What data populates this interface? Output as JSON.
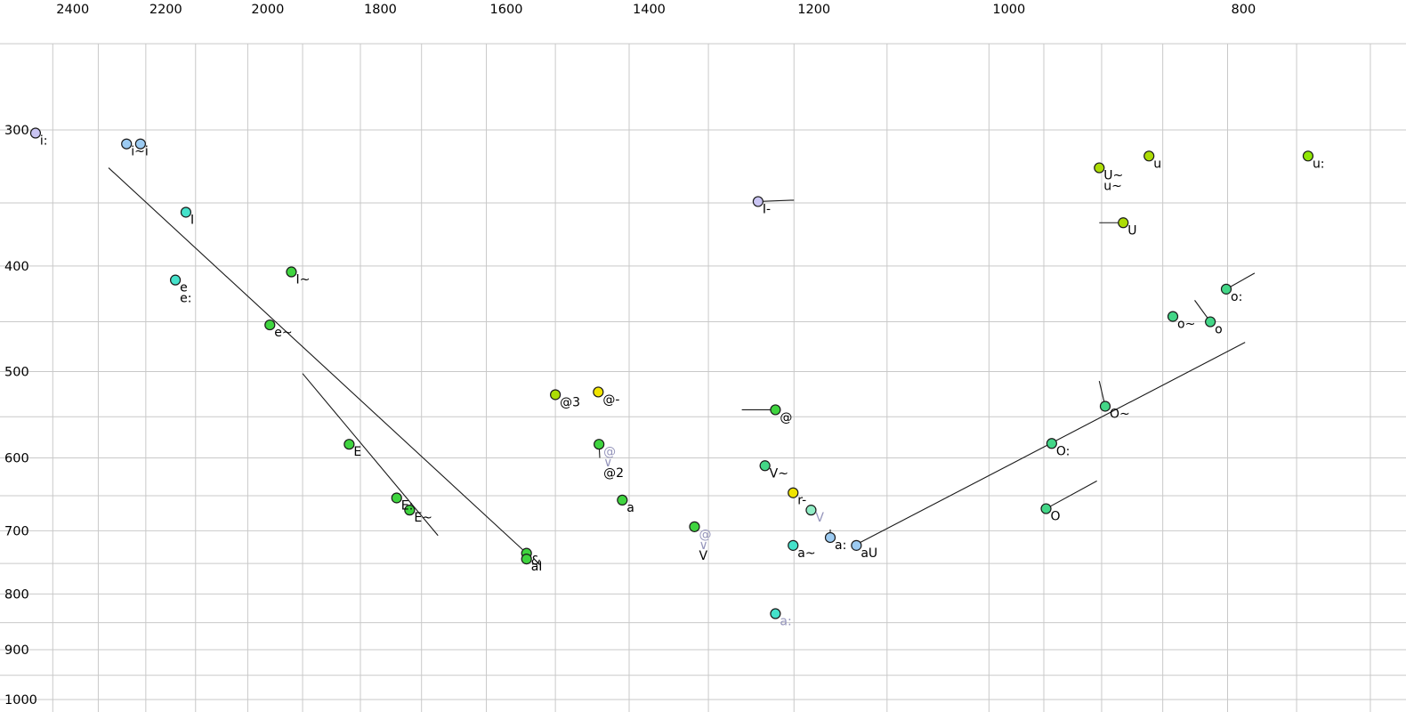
{
  "chart_data": {
    "type": "scatter",
    "title": "",
    "description_visible_text_only": true,
    "x_axis": {
      "unit": "Hz",
      "scale": "log",
      "reversed": true,
      "ticks": [
        2400,
        2200,
        2000,
        1800,
        1600,
        1400,
        1200,
        1000,
        800
      ],
      "gridlines": [
        2400,
        2300,
        2200,
        2100,
        2000,
        1900,
        1800,
        1700,
        1600,
        1500,
        1400,
        1300,
        1200,
        1100,
        1000,
        950,
        900,
        850,
        800,
        750,
        700
      ]
    },
    "y_axis": {
      "unit": "Hz",
      "scale": "log",
      "ticks": [
        300,
        400,
        500,
        600,
        700,
        800,
        900,
        1000
      ],
      "gridlines": [
        250,
        300,
        350,
        400,
        450,
        500,
        550,
        600,
        650,
        700,
        750,
        800,
        850,
        900,
        950,
        1000
      ]
    },
    "grid": true,
    "legend": null,
    "colors": {
      "lavender": "#C9C4F2",
      "lightblue": "#9CCBF2",
      "turquoise": "#45E2CB",
      "green": "#3FD43F",
      "springgreen": "#43D687",
      "aqua": "#90EDC5",
      "yellow": "#F0E400",
      "yellowgreen": "#ACDC05",
      "chartreuse": "#8FE605",
      "label_black": "#000000",
      "label_grey": "#9595BB",
      "dot_stroke": "#1a1a1a",
      "grid_line": "#C9C9C9",
      "segment": "#1a1a1a"
    },
    "points": [
      {
        "labels": [
          {
            "t": "i:"
          }
        ],
        "f2": 2439,
        "f1": 302,
        "color": "lavender"
      },
      {
        "labels": [
          {
            "t": "i~"
          }
        ],
        "f2": 2240,
        "f1": 309,
        "color": "lightblue"
      },
      {
        "labels": [
          {
            "t": "i"
          }
        ],
        "f2": 2211,
        "f1": 309,
        "color": "lightblue"
      },
      {
        "labels": [
          {
            "t": "I"
          }
        ],
        "f2": 2119,
        "f1": 357,
        "color": "turquoise"
      },
      {
        "labels": [
          {
            "t": "e"
          },
          {
            "t": "e:"
          }
        ],
        "f2": 2140,
        "f1": 412,
        "color": "turquoise"
      },
      {
        "labels": [
          {
            "t": "I~"
          }
        ],
        "f2": 1920,
        "f1": 405,
        "color": "green"
      },
      {
        "labels": [
          {
            "t": "e~"
          }
        ],
        "f2": 1959,
        "f1": 453,
        "color": "green"
      },
      {
        "labels": [
          {
            "t": "E"
          }
        ],
        "f2": 1819,
        "f1": 583,
        "color": "green"
      },
      {
        "labels": [
          {
            "t": "E:"
          }
        ],
        "f2": 1740,
        "f1": 653,
        "color": "green"
      },
      {
        "labels": [
          {
            "t": "E~"
          }
        ],
        "f2": 1719,
        "f1": 670,
        "color": "green"
      },
      {
        "labels": [
          {
            "t": "&"
          }
        ],
        "f2": 1541,
        "f1": 734,
        "color": "green"
      },
      {
        "labels": [
          {
            "t": "aI"
          }
        ],
        "f2": 1541,
        "f1": 743,
        "color": "green"
      },
      {
        "labels": [
          {
            "t": "@3"
          }
        ],
        "f2": 1500,
        "f1": 525,
        "color": "yellowgreen"
      },
      {
        "labels": [
          {
            "t": "@-"
          }
        ],
        "f2": 1441,
        "f1": 522,
        "color": "yellow"
      },
      {
        "labels": [
          {
            "t": "@",
            "grey": true
          },
          {
            "t": "∨",
            "grey": true
          },
          {
            "t": "@2"
          }
        ],
        "f2": 1440,
        "f1": 583,
        "color": "green",
        "tail": [
          1439,
          600
        ]
      },
      {
        "labels": [
          {
            "t": "a"
          }
        ],
        "f2": 1409,
        "f1": 656,
        "color": "green"
      },
      {
        "labels": [
          {
            "t": "@",
            "grey": true
          },
          {
            "t": "∨",
            "grey": true
          },
          {
            "t": "V"
          }
        ],
        "f2": 1317,
        "f1": 694,
        "color": "green"
      },
      {
        "labels": [
          {
            "t": "I-"
          }
        ],
        "f2": 1241,
        "f1": 349,
        "color": "lavender",
        "tail": [
          1200,
          348
        ]
      },
      {
        "labels": [
          {
            "t": "@"
          }
        ],
        "f2": 1221,
        "f1": 542,
        "color": "green",
        "tail": [
          1260,
          542
        ]
      },
      {
        "labels": [
          {
            "t": "V~"
          }
        ],
        "f2": 1233,
        "f1": 610,
        "color": "springgreen",
        "tail": [
          1239,
          610
        ]
      },
      {
        "labels": [
          {
            "t": "r-"
          }
        ],
        "f2": 1201,
        "f1": 646,
        "color": "yellow",
        "tail": [
          1201,
          639
        ]
      },
      {
        "labels": [
          {
            "t": "V",
            "grey": true
          }
        ],
        "f2": 1181,
        "f1": 670,
        "color": "aqua"
      },
      {
        "labels": [
          {
            "t": "a~"
          }
        ],
        "f2": 1201,
        "f1": 722,
        "color": "turquoise"
      },
      {
        "labels": [
          {
            "t": "a:"
          }
        ],
        "f2": 1160,
        "f1": 710,
        "color": "lightblue",
        "tail": [
          1160,
          698
        ]
      },
      {
        "labels": [
          {
            "t": "aU"
          }
        ],
        "f2": 1132,
        "f1": 722,
        "color": "lightblue"
      },
      {
        "labels": [
          {
            "t": "a:",
            "grey": true
          }
        ],
        "f2": 1221,
        "f1": 834,
        "color": "turquoise"
      },
      {
        "labels": [
          {
            "t": "O:"
          }
        ],
        "f2": 943,
        "f1": 582,
        "color": "springgreen"
      },
      {
        "labels": [
          {
            "t": "O~"
          }
        ],
        "f2": 897,
        "f1": 538,
        "color": "springgreen",
        "tail": [
          902,
          510
        ]
      },
      {
        "labels": [
          {
            "t": "O"
          }
        ],
        "f2": 948,
        "f1": 668,
        "color": "springgreen",
        "tail": [
          904,
          630
        ]
      },
      {
        "labels": [
          {
            "t": "U~"
          },
          {
            "t": "u~"
          }
        ],
        "f2": 902,
        "f1": 325,
        "color": "yellowgreen"
      },
      {
        "labels": [
          {
            "t": "u"
          }
        ],
        "f2": 861,
        "f1": 317,
        "color": "yellowgreen"
      },
      {
        "labels": [
          {
            "t": "U"
          }
        ],
        "f2": 882,
        "f1": 365,
        "color": "yellowgreen",
        "tail": [
          902,
          365
        ]
      },
      {
        "labels": [
          {
            "t": "o:"
          }
        ],
        "f2": 801,
        "f1": 420,
        "color": "springgreen",
        "tail": [
          780,
          406
        ]
      },
      {
        "labels": [
          {
            "t": "o~"
          }
        ],
        "f2": 842,
        "f1": 445,
        "color": "springgreen"
      },
      {
        "labels": [
          {
            "t": "o"
          }
        ],
        "f2": 813,
        "f1": 450,
        "color": "springgreen",
        "tail": [
          825,
          430
        ]
      },
      {
        "labels": [
          {
            "t": "u:"
          }
        ],
        "f2": 742,
        "f1": 317,
        "color": "chartreuse"
      }
    ],
    "segments": [
      {
        "from": [
          2278,
          325
        ],
        "to": [
          1537,
          738
        ]
      },
      {
        "from": [
          1900,
          502
        ],
        "to": [
          1674,
          707
        ]
      },
      {
        "from": [
          1130,
          719
        ],
        "to": [
          787,
          470
        ]
      }
    ]
  }
}
